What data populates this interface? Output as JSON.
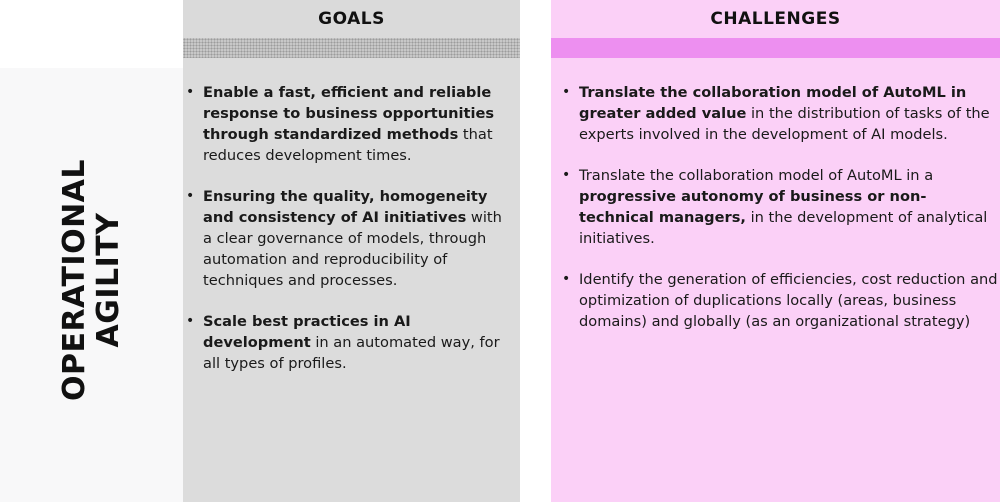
{
  "row_label": {
    "line1": "OPERATIONAL",
    "line2": "AGILITY"
  },
  "goals": {
    "header": "GOALS",
    "items": [
      {
        "bold": "Enable a fast, efficient and reliable response to business opportunities through standardized methods",
        "rest": " that reduces development times."
      },
      {
        "bold": "Ensuring the quality, homogeneity and consistency of AI initiatives",
        "rest": " with a clear governance of models, through automation and reproducibility of techniques and processes."
      },
      {
        "bold": "Scale best practices in AI development",
        "rest": " in an automated way, for all types of profiles."
      }
    ]
  },
  "challenges": {
    "header": "CHALLENGES",
    "items": [
      {
        "pre": "",
        "bold": "Translate the collaboration model of AutoML in greater added value",
        "rest": " in the distribution of tasks of the experts involved in the development of AI models."
      },
      {
        "pre": "Translate the collaboration model of AutoML in a ",
        "bold": "progressive autonomy of business or non-technical managers,",
        "rest": " in the development of analytical initiatives."
      },
      {
        "pre": "Identify the generation of efficiencies, cost reduction and optimization of duplications locally (areas, business domains) and globally (as an organizational strategy)",
        "bold": "",
        "rest": ""
      }
    ]
  },
  "colors": {
    "goals_bg": "#dadada",
    "goals_band": "#c8c8c8",
    "challenges_bg": "#fbd0f7",
    "challenges_band": "#ed8ff0",
    "label_strip": "#f8f8f9"
  }
}
